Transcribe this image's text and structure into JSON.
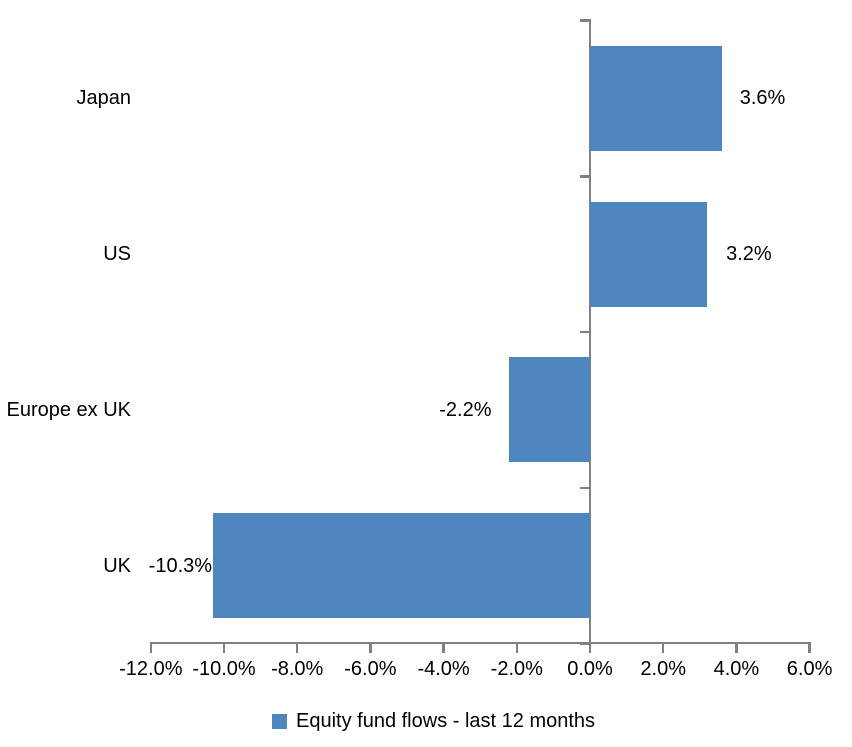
{
  "chart_data": {
    "type": "bar",
    "orientation": "horizontal",
    "categories": [
      "Japan",
      "US",
      "Europe ex UK",
      "UK"
    ],
    "series": [
      {
        "name": "Equity fund flows - last 12 months",
        "values": [
          3.6,
          3.2,
          -2.2,
          -10.3
        ]
      }
    ],
    "data_labels": [
      "3.6%",
      "3.2%",
      "-2.2%",
      "-10.3%"
    ],
    "x_axis": {
      "min": -12,
      "max": 6,
      "tick_step": 2,
      "tick_values": [
        -12,
        -10,
        -8,
        -6,
        -4,
        -2,
        0,
        2,
        4,
        6
      ],
      "tick_labels": [
        "-12.0%",
        "-10.0%",
        "-8.0%",
        "-6.0%",
        "-4.0%",
        "-2.0%",
        "0.0%",
        "2.0%",
        "4.0%",
        "6.0%"
      ]
    },
    "legend": {
      "label": "Equity fund flows - last 12 months",
      "position": "bottom"
    },
    "grid": false,
    "colors": {
      "bar": "#4E86BE",
      "axis": "#808080",
      "text": "#000000",
      "background": "#FFFFFF"
    }
  }
}
